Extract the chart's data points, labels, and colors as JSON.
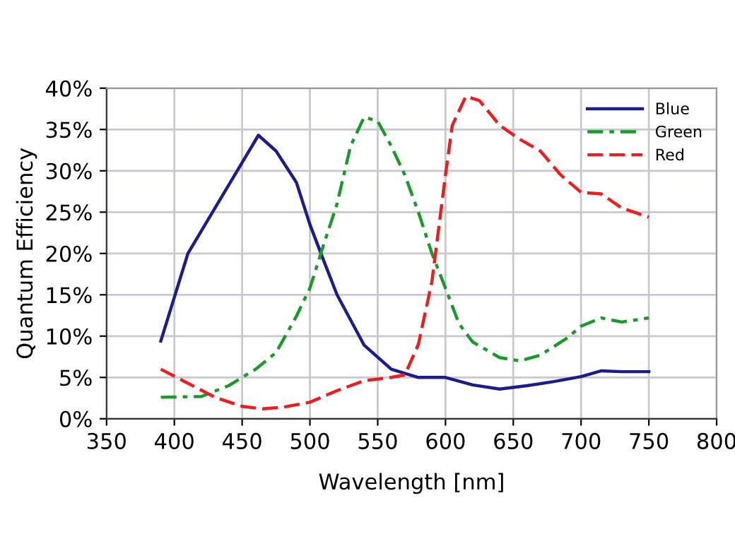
{
  "chart_data": {
    "type": "line",
    "xlabel": "Wavelength [nm]",
    "ylabel": "Quantum Efficiency",
    "xlim": [
      350,
      800
    ],
    "xticks": [
      350,
      400,
      450,
      500,
      550,
      600,
      650,
      700,
      750,
      800
    ],
    "ylim": [
      0,
      40
    ],
    "yticks": [
      {
        "value": 0,
        "label": "0%"
      },
      {
        "value": 5,
        "label": "5%"
      },
      {
        "value": 10,
        "label": "10%"
      },
      {
        "value": 15,
        "label": "15%"
      },
      {
        "value": 20,
        "label": "20%"
      },
      {
        "value": 25,
        "label": "25%"
      },
      {
        "value": 30,
        "label": "30%"
      },
      {
        "value": 35,
        "label": "35%"
      },
      {
        "value": 40,
        "label": "40%"
      }
    ],
    "grid": true,
    "legend": "top right",
    "marker": "none",
    "series": [
      {
        "name": "Blue",
        "color": "#1c1c8c",
        "line_style": "solid",
        "x": [
          390,
          410,
          430,
          450,
          462,
          475,
          490,
          500,
          510,
          520,
          540,
          560,
          580,
          600,
          620,
          640,
          660,
          680,
          700,
          715,
          730,
          750
        ],
        "values": [
          9.4,
          20,
          25.5,
          31,
          34.3,
          32.4,
          28.6,
          23.5,
          19.2,
          15,
          8.9,
          6,
          5,
          5,
          4.1,
          3.6,
          4,
          4.5,
          5.1,
          5.8,
          5.7,
          5.7
        ]
      },
      {
        "name": "Green",
        "color": "#1a9a2a",
        "line_style": "dashdot",
        "x": [
          390,
          420,
          440,
          460,
          475,
          490,
          500,
          510,
          520,
          530,
          540,
          550,
          560,
          570,
          580,
          590,
          600,
          610,
          620,
          640,
          655,
          670,
          690,
          700,
          715,
          730,
          750
        ],
        "values": [
          2.6,
          2.7,
          4,
          6,
          8,
          12.4,
          15.8,
          21,
          26,
          33,
          36.5,
          36,
          33,
          29.5,
          25,
          20,
          15.8,
          11.5,
          9.3,
          7.4,
          7,
          7.7,
          9.8,
          11.2,
          12.2,
          11.7,
          12.2
        ]
      },
      {
        "name": "Red",
        "color": "#ee1c1c",
        "line_style": "dashed",
        "x": [
          390,
          410,
          430,
          450,
          465,
          480,
          500,
          520,
          540,
          560,
          570,
          580,
          590,
          600,
          605,
          615,
          625,
          640,
          655,
          670,
          685,
          700,
          715,
          730,
          750
        ],
        "values": [
          6,
          4.3,
          2.6,
          1.5,
          1.2,
          1.4,
          2,
          3.4,
          4.6,
          5,
          5.3,
          9,
          16.6,
          29.5,
          35.5,
          39,
          38.5,
          35.5,
          33.8,
          32.4,
          29.5,
          27.4,
          27.2,
          25.5,
          24.4
        ]
      }
    ]
  }
}
